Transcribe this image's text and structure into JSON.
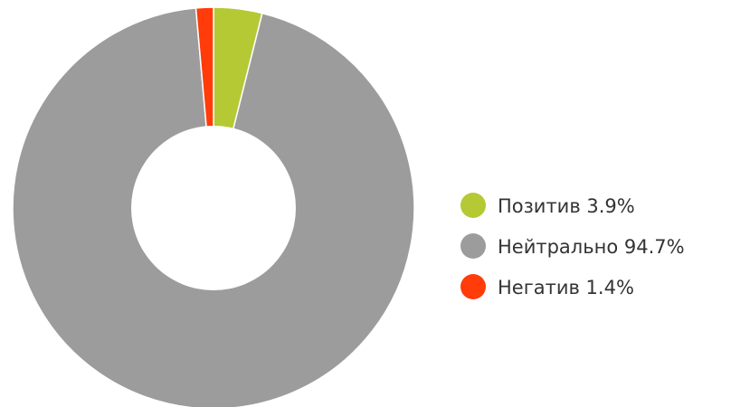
{
  "chart_data": {
    "type": "pie",
    "donut": true,
    "title": "",
    "legend_position": "right",
    "slices": [
      {
        "name": "Позитив",
        "value": 3.9,
        "label": "Позитив 3.9%",
        "color": "#b5c934"
      },
      {
        "name": "Нейтрально",
        "value": 94.7,
        "label": "Нейтрально 94.7%",
        "color": "#9c9c9c"
      },
      {
        "name": "Негатив",
        "value": 1.4,
        "label": "Негатив 1.4%",
        "color": "#ff3c0a"
      }
    ]
  }
}
